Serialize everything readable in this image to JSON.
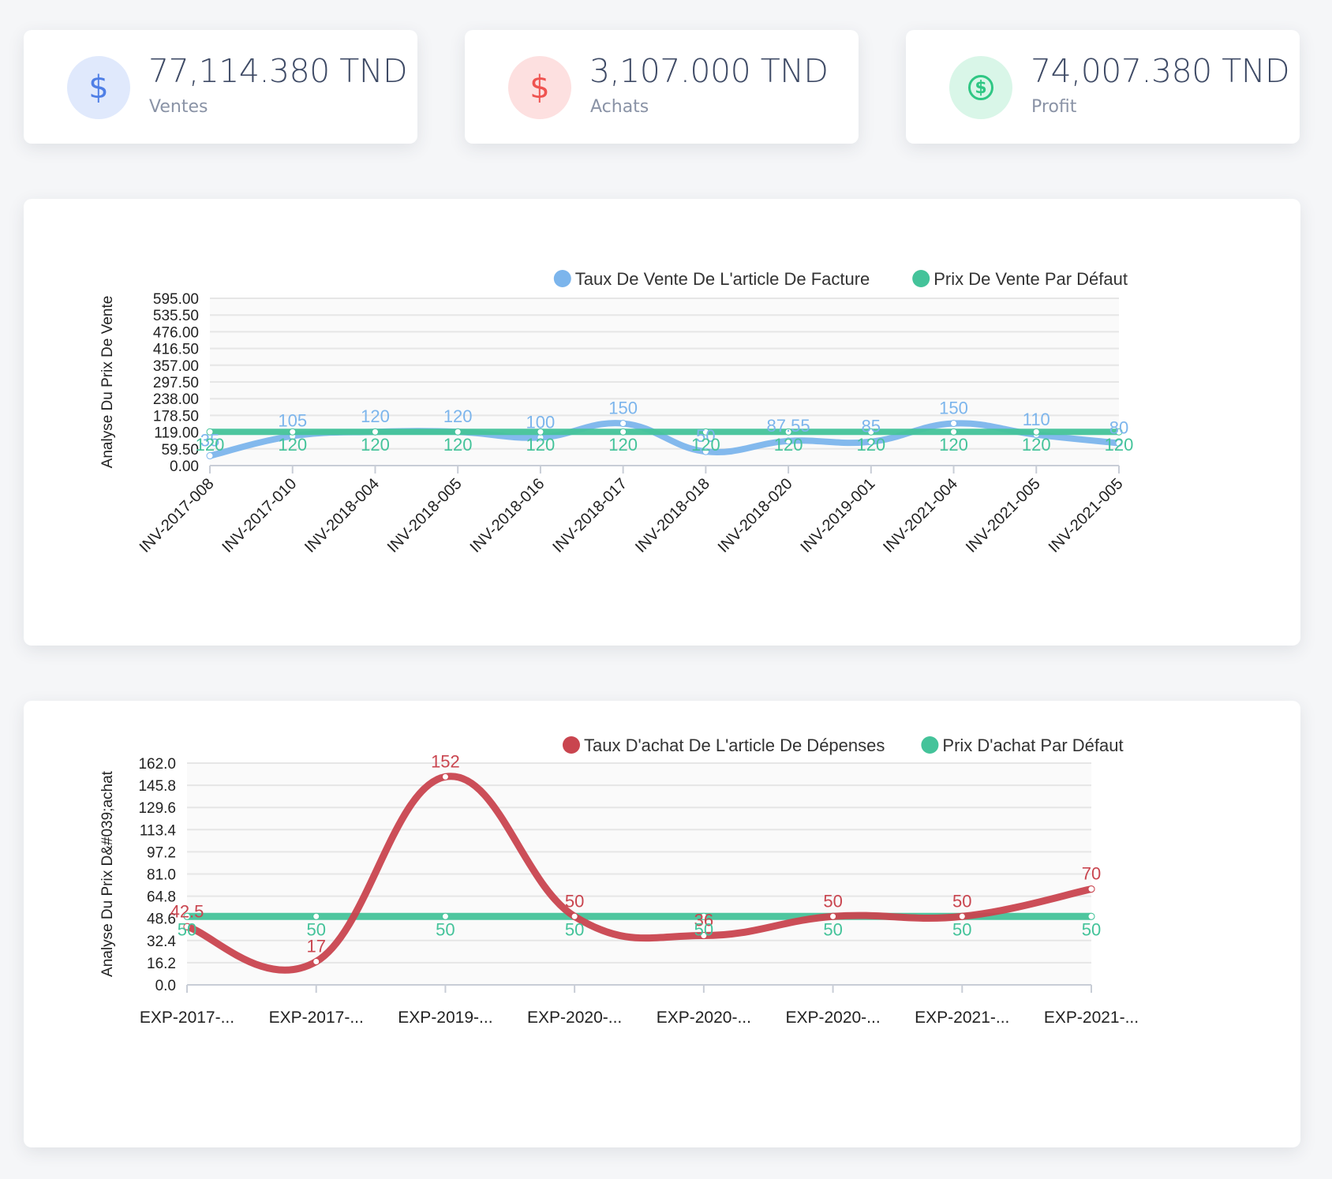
{
  "stats": [
    {
      "value": "77,114.380 TND",
      "label": "Ventes",
      "icon": "dollar-sign-icon",
      "icon_glyph": "$",
      "icon_color": "#4f7fe6",
      "icon_bg": "#e0e9fc"
    },
    {
      "value": "3,107.000 TND",
      "label": "Achats",
      "icon": "dollar-sign-icon",
      "icon_glyph": "$",
      "icon_color": "#ef5350",
      "icon_bg": "#fde0e0"
    },
    {
      "value": "74,007.380 TND",
      "label": "Profit",
      "icon": "dollar-circle-icon",
      "icon_glyph": "$",
      "icon_color": "#2fc784",
      "icon_bg": "#d9f6e8"
    }
  ],
  "chart_data": [
    {
      "type": "line",
      "ylabel": "Analyse Du Prix De Vente",
      "ylim": [
        0,
        595
      ],
      "yticks": [
        "595.00",
        "535.50",
        "476.00",
        "416.50",
        "357.00",
        "297.50",
        "238.00",
        "178.50",
        "119.00",
        "59.50",
        "0.00"
      ],
      "categories": [
        "INV-2017-008",
        "INV-2017-010",
        "INV-2018-004",
        "INV-2018-005",
        "INV-2018-016",
        "INV-2018-017",
        "INV-2018-018",
        "INV-2018-020",
        "INV-2019-001",
        "INV-2021-004",
        "INV-2021-005",
        "INV-2021-005"
      ],
      "legend_position": "top-right",
      "grid": true,
      "series": [
        {
          "name": "Taux De Vente De L'article De Facture",
          "color": "#7cb5ec",
          "values": [
            35,
            105,
            120,
            120,
            100,
            150,
            50,
            87.55,
            85,
            150,
            110,
            80
          ],
          "labels": [
            "35",
            "105",
            "120",
            "120",
            "100",
            "150",
            "50",
            "87.55",
            "85",
            "150",
            "110",
            "80"
          ]
        },
        {
          "name": "Prix De Vente Par Défaut",
          "color": "#44c39a",
          "values": [
            120,
            120,
            120,
            120,
            120,
            120,
            120,
            120,
            120,
            120,
            120,
            120
          ],
          "labels": [
            "120",
            "120",
            "120",
            "120",
            "120",
            "120",
            "120",
            "120",
            "120",
            "120",
            "120",
            "120"
          ]
        }
      ]
    },
    {
      "type": "line",
      "ylabel": "Analyse Du Prix D&#039;achat",
      "ylim": [
        0,
        162
      ],
      "yticks": [
        "162.0",
        "145.8",
        "129.6",
        "113.4",
        "97.2",
        "81.0",
        "64.8",
        "48.6",
        "32.4",
        "16.2",
        "0.0"
      ],
      "categories": [
        "EXP-2017-...",
        "EXP-2017-...",
        "EXP-2019-...",
        "EXP-2020-...",
        "EXP-2020-...",
        "EXP-2020-...",
        "EXP-2021-...",
        "EXP-2021-..."
      ],
      "legend_position": "top-right",
      "grid": true,
      "series": [
        {
          "name": "Taux D'achat De L'article De Dépenses",
          "color": "#c9454f",
          "values": [
            42.5,
            17,
            152,
            50,
            36,
            50,
            50,
            70
          ],
          "labels": [
            "42.5",
            "17",
            "152",
            "50",
            "36",
            "50",
            "50",
            "70"
          ]
        },
        {
          "name": "Prix D'achat Par Défaut",
          "color": "#44c39a",
          "values": [
            50,
            50,
            50,
            50,
            50,
            50,
            50,
            50
          ],
          "labels": [
            "50",
            "50",
            "50",
            "50",
            "50",
            "50",
            "50",
            "50"
          ]
        }
      ]
    }
  ]
}
